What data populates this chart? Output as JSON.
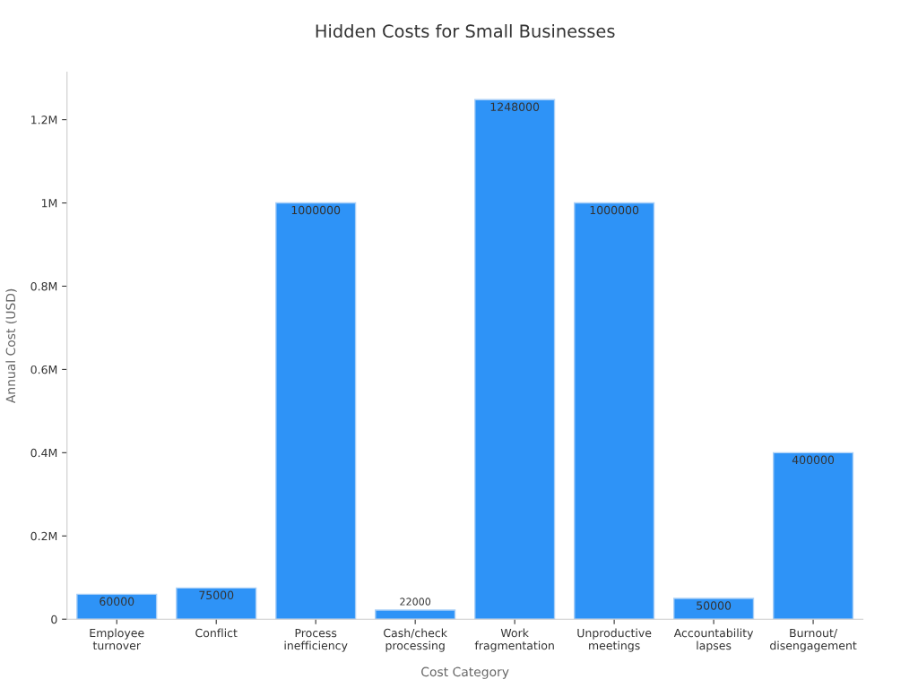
{
  "chart_data": {
    "type": "bar",
    "title": "Hidden Costs for Small Businesses",
    "xlabel": "Cost Category",
    "ylabel": "Annual Cost (USD)",
    "categories": [
      "Employee\nturnover",
      "Conflict",
      "Process\ninefficiency",
      "Cash/check\nprocessing",
      "Work\nfragmentation",
      "Unproductive\nmeetings",
      "Accountability\nlapses",
      "Burnout/\ndisengagement"
    ],
    "values": [
      60000,
      75000,
      1000000,
      22000,
      1248000,
      1000000,
      50000,
      400000
    ],
    "color": "#2e93f7",
    "ylim": [
      0,
      1314000
    ],
    "yticks": [
      0,
      {
        "value": 200000,
        "label": "0.2M"
      },
      {
        "value": 400000,
        "label": "0.4M"
      },
      {
        "value": 600000,
        "label": "0.6M"
      },
      {
        "value": 800000,
        "label": "0.8M"
      },
      {
        "value": 1000000,
        "label": "1M"
      },
      {
        "value": 1200000,
        "label": "1.2M"
      }
    ],
    "data_labels": true,
    "grid": false,
    "legend": false
  }
}
